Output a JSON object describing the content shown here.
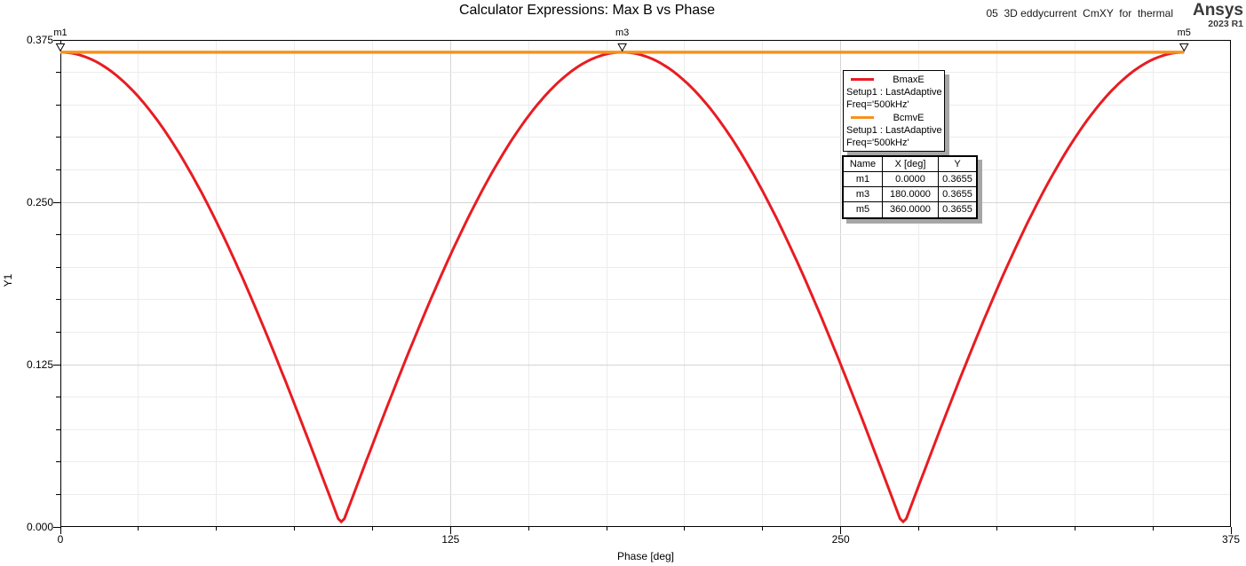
{
  "header": {
    "title": "Calculator Expressions: Max B vs Phase",
    "watermark": "05  3D eddycurrent  CmXY  for  thermal",
    "logo_line1": "Ansys",
    "logo_line2": "2023 R1"
  },
  "chart_data": {
    "type": "line",
    "title": "Calculator Expressions: Max B vs Phase",
    "xlabel": "Phase [deg]",
    "ylabel": "Y1",
    "xlim": [
      0,
      375
    ],
    "ylim": [
      0,
      0.375
    ],
    "grid": true,
    "x_ticks": [
      {
        "v": 0,
        "label": "0"
      },
      {
        "v": 125,
        "label": "125"
      },
      {
        "v": 250,
        "label": "250"
      },
      {
        "v": 375,
        "label": "375"
      }
    ],
    "y_ticks": [
      {
        "v": 0,
        "label": "0.000"
      },
      {
        "v": 0.125,
        "label": "0.125"
      },
      {
        "v": 0.25,
        "label": "0.250"
      },
      {
        "v": 0.375,
        "label": "0.375"
      }
    ],
    "x_minor_step_deg": 25,
    "y_minor_step": 0.025,
    "legend_position": "upper-right-inside",
    "series": [
      {
        "name": "BmaxE",
        "color": "#e81c22",
        "stroke_width": 3,
        "legend_sub": [
          "Setup1 : LastAdaptive",
          "Freq='500kHz'"
        ],
        "x_range_deg": [
          0,
          360
        ],
        "formula": "0.3655 * |cos(phase_deg)|",
        "amplitude": 0.3655,
        "min_value": 0.004,
        "samples": [
          [
            0,
            0.3655
          ],
          [
            15,
            0.3531
          ],
          [
            30,
            0.3165
          ],
          [
            45,
            0.2584
          ],
          [
            60,
            0.1828
          ],
          [
            75,
            0.0946
          ],
          [
            90,
            0.004
          ],
          [
            105,
            0.0946
          ],
          [
            120,
            0.1828
          ],
          [
            135,
            0.2584
          ],
          [
            150,
            0.3165
          ],
          [
            165,
            0.3531
          ],
          [
            180,
            0.3655
          ],
          [
            195,
            0.3531
          ],
          [
            210,
            0.3165
          ],
          [
            225,
            0.2584
          ],
          [
            240,
            0.1828
          ],
          [
            255,
            0.0946
          ],
          [
            270,
            0.004
          ],
          [
            285,
            0.0946
          ],
          [
            300,
            0.1828
          ],
          [
            315,
            0.2584
          ],
          [
            330,
            0.3165
          ],
          [
            345,
            0.3531
          ],
          [
            360,
            0.3655
          ]
        ]
      },
      {
        "name": "BcmvE",
        "color": "#f6921e",
        "stroke_width": 3.5,
        "legend_sub": [
          "Setup1 : LastAdaptive",
          "Freq='500kHz'"
        ],
        "x_range_deg": [
          0,
          360
        ],
        "constant": 0.3655
      }
    ],
    "markers": [
      {
        "name": "m1",
        "x_deg": 0,
        "y": 0.3655
      },
      {
        "name": "m3",
        "x_deg": 180,
        "y": 0.3655
      },
      {
        "name": "m5",
        "x_deg": 360,
        "y": 0.3655
      }
    ],
    "marker_table": {
      "headers": [
        "Name",
        "X [deg]",
        "Y"
      ],
      "rows": [
        [
          "m1",
          "0.0000",
          "0.3655"
        ],
        [
          "m3",
          "180.0000",
          "0.3655"
        ],
        [
          "m5",
          "360.0000",
          "0.3655"
        ]
      ]
    },
    "colors": {
      "grid_minor": "#ececec",
      "grid_major": "#d4d4d4",
      "frame": "#000000",
      "shadow": "#a6a6a6"
    }
  }
}
